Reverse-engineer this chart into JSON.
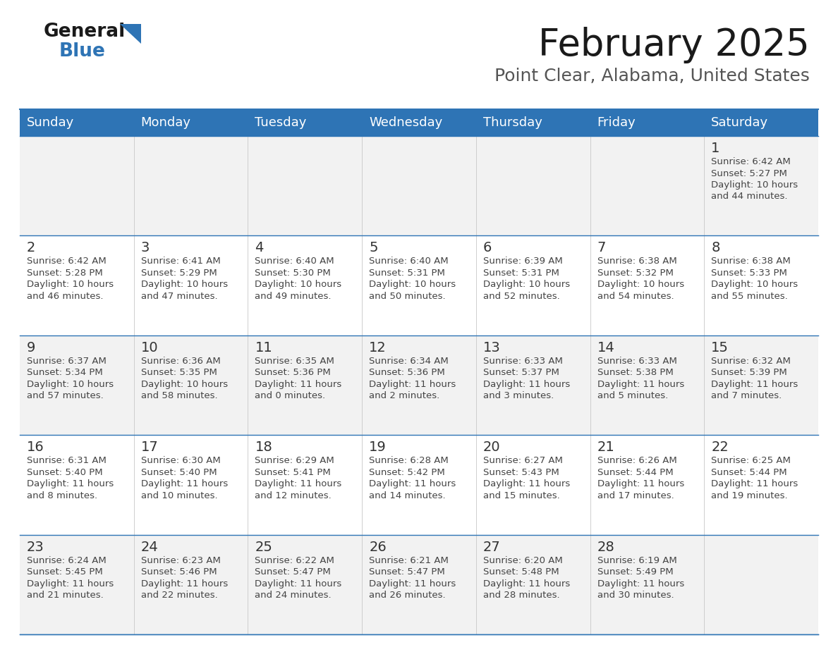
{
  "title": "February 2025",
  "subtitle": "Point Clear, Alabama, United States",
  "header_bg": "#2e74b5",
  "header_text": "#ffffff",
  "day_names": [
    "Sunday",
    "Monday",
    "Tuesday",
    "Wednesday",
    "Thursday",
    "Friday",
    "Saturday"
  ],
  "row_bg_odd": "#f2f2f2",
  "row_bg_even": "#ffffff",
  "border_color": "#2e74b5",
  "date_color": "#333333",
  "info_color": "#444444",
  "title_color": "#1a1a1a",
  "subtitle_color": "#555555",
  "logo_general_color": "#1a1a1a",
  "logo_blue_color": "#2e74b5",
  "calendar": [
    [
      null,
      null,
      null,
      null,
      null,
      null,
      {
        "day": "1",
        "sunrise": "6:42 AM",
        "sunset": "5:27 PM",
        "daylight_line1": "Daylight: 10 hours",
        "daylight_line2": "and 44 minutes."
      }
    ],
    [
      {
        "day": "2",
        "sunrise": "6:42 AM",
        "sunset": "5:28 PM",
        "daylight_line1": "Daylight: 10 hours",
        "daylight_line2": "and 46 minutes."
      },
      {
        "day": "3",
        "sunrise": "6:41 AM",
        "sunset": "5:29 PM",
        "daylight_line1": "Daylight: 10 hours",
        "daylight_line2": "and 47 minutes."
      },
      {
        "day": "4",
        "sunrise": "6:40 AM",
        "sunset": "5:30 PM",
        "daylight_line1": "Daylight: 10 hours",
        "daylight_line2": "and 49 minutes."
      },
      {
        "day": "5",
        "sunrise": "6:40 AM",
        "sunset": "5:31 PM",
        "daylight_line1": "Daylight: 10 hours",
        "daylight_line2": "and 50 minutes."
      },
      {
        "day": "6",
        "sunrise": "6:39 AM",
        "sunset": "5:31 PM",
        "daylight_line1": "Daylight: 10 hours",
        "daylight_line2": "and 52 minutes."
      },
      {
        "day": "7",
        "sunrise": "6:38 AM",
        "sunset": "5:32 PM",
        "daylight_line1": "Daylight: 10 hours",
        "daylight_line2": "and 54 minutes."
      },
      {
        "day": "8",
        "sunrise": "6:38 AM",
        "sunset": "5:33 PM",
        "daylight_line1": "Daylight: 10 hours",
        "daylight_line2": "and 55 minutes."
      }
    ],
    [
      {
        "day": "9",
        "sunrise": "6:37 AM",
        "sunset": "5:34 PM",
        "daylight_line1": "Daylight: 10 hours",
        "daylight_line2": "and 57 minutes."
      },
      {
        "day": "10",
        "sunrise": "6:36 AM",
        "sunset": "5:35 PM",
        "daylight_line1": "Daylight: 10 hours",
        "daylight_line2": "and 58 minutes."
      },
      {
        "day": "11",
        "sunrise": "6:35 AM",
        "sunset": "5:36 PM",
        "daylight_line1": "Daylight: 11 hours",
        "daylight_line2": "and 0 minutes."
      },
      {
        "day": "12",
        "sunrise": "6:34 AM",
        "sunset": "5:36 PM",
        "daylight_line1": "Daylight: 11 hours",
        "daylight_line2": "and 2 minutes."
      },
      {
        "day": "13",
        "sunrise": "6:33 AM",
        "sunset": "5:37 PM",
        "daylight_line1": "Daylight: 11 hours",
        "daylight_line2": "and 3 minutes."
      },
      {
        "day": "14",
        "sunrise": "6:33 AM",
        "sunset": "5:38 PM",
        "daylight_line1": "Daylight: 11 hours",
        "daylight_line2": "and 5 minutes."
      },
      {
        "day": "15",
        "sunrise": "6:32 AM",
        "sunset": "5:39 PM",
        "daylight_line1": "Daylight: 11 hours",
        "daylight_line2": "and 7 minutes."
      }
    ],
    [
      {
        "day": "16",
        "sunrise": "6:31 AM",
        "sunset": "5:40 PM",
        "daylight_line1": "Daylight: 11 hours",
        "daylight_line2": "and 8 minutes."
      },
      {
        "day": "17",
        "sunrise": "6:30 AM",
        "sunset": "5:40 PM",
        "daylight_line1": "Daylight: 11 hours",
        "daylight_line2": "and 10 minutes."
      },
      {
        "day": "18",
        "sunrise": "6:29 AM",
        "sunset": "5:41 PM",
        "daylight_line1": "Daylight: 11 hours",
        "daylight_line2": "and 12 minutes."
      },
      {
        "day": "19",
        "sunrise": "6:28 AM",
        "sunset": "5:42 PM",
        "daylight_line1": "Daylight: 11 hours",
        "daylight_line2": "and 14 minutes."
      },
      {
        "day": "20",
        "sunrise": "6:27 AM",
        "sunset": "5:43 PM",
        "daylight_line1": "Daylight: 11 hours",
        "daylight_line2": "and 15 minutes."
      },
      {
        "day": "21",
        "sunrise": "6:26 AM",
        "sunset": "5:44 PM",
        "daylight_line1": "Daylight: 11 hours",
        "daylight_line2": "and 17 minutes."
      },
      {
        "day": "22",
        "sunrise": "6:25 AM",
        "sunset": "5:44 PM",
        "daylight_line1": "Daylight: 11 hours",
        "daylight_line2": "and 19 minutes."
      }
    ],
    [
      {
        "day": "23",
        "sunrise": "6:24 AM",
        "sunset": "5:45 PM",
        "daylight_line1": "Daylight: 11 hours",
        "daylight_line2": "and 21 minutes."
      },
      {
        "day": "24",
        "sunrise": "6:23 AM",
        "sunset": "5:46 PM",
        "daylight_line1": "Daylight: 11 hours",
        "daylight_line2": "and 22 minutes."
      },
      {
        "day": "25",
        "sunrise": "6:22 AM",
        "sunset": "5:47 PM",
        "daylight_line1": "Daylight: 11 hours",
        "daylight_line2": "and 24 minutes."
      },
      {
        "day": "26",
        "sunrise": "6:21 AM",
        "sunset": "5:47 PM",
        "daylight_line1": "Daylight: 11 hours",
        "daylight_line2": "and 26 minutes."
      },
      {
        "day": "27",
        "sunrise": "6:20 AM",
        "sunset": "5:48 PM",
        "daylight_line1": "Daylight: 11 hours",
        "daylight_line2": "and 28 minutes."
      },
      {
        "day": "28",
        "sunrise": "6:19 AM",
        "sunset": "5:49 PM",
        "daylight_line1": "Daylight: 11 hours",
        "daylight_line2": "and 30 minutes."
      },
      null
    ]
  ]
}
